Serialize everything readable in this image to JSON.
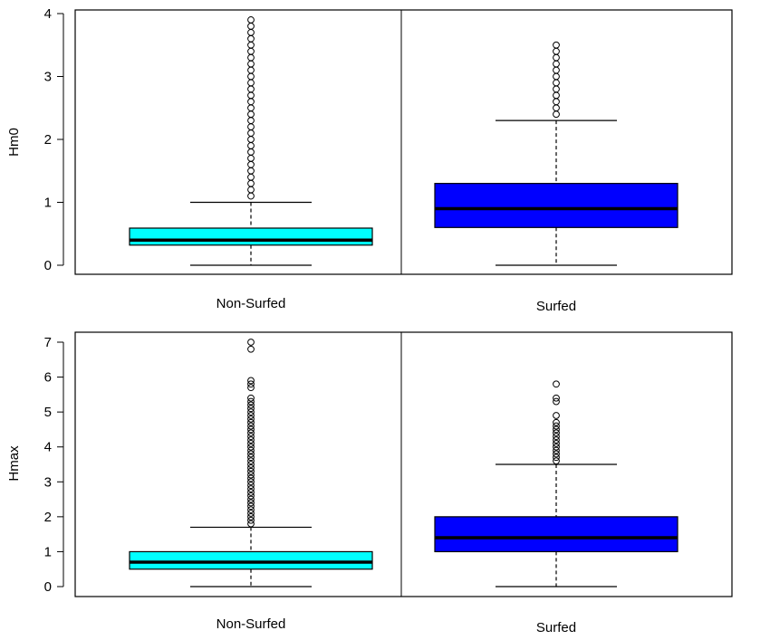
{
  "chart_data": [
    {
      "type": "box",
      "title": "",
      "ylabel": "Hm0",
      "ylim": [
        0,
        4
      ],
      "yticks": [
        "0",
        "1",
        "2",
        "3",
        "4"
      ],
      "categories": [
        "Non-Surfed",
        "Surfed"
      ],
      "boxes": [
        {
          "category": "Non-Surfed",
          "color": "#00FFFF",
          "min": 0,
          "q1": 0.32,
          "median": 0.4,
          "q3": 0.59,
          "max": 1.0,
          "outliers": [
            1.1,
            1.2,
            1.3,
            1.4,
            1.5,
            1.6,
            1.7,
            1.8,
            1.9,
            2.0,
            2.1,
            2.2,
            2.3,
            2.4,
            2.5,
            2.6,
            2.7,
            2.8,
            2.9,
            3.0,
            3.1,
            3.2,
            3.3,
            3.4,
            3.5,
            3.6,
            3.7,
            3.8,
            3.9
          ]
        },
        {
          "category": "Surfed",
          "color": "#0000FF",
          "min": 0,
          "q1": 0.6,
          "median": 0.9,
          "q3": 1.3,
          "max": 2.3,
          "outliers": [
            2.4,
            2.5,
            2.6,
            2.7,
            2.8,
            2.9,
            3.0,
            3.1,
            3.2,
            3.3,
            3.4,
            3.5
          ]
        }
      ]
    },
    {
      "type": "box",
      "title": "",
      "ylabel": "Hmax",
      "ylim": [
        0,
        7
      ],
      "yticks": [
        "0",
        "1",
        "2",
        "3",
        "4",
        "5",
        "6",
        "7"
      ],
      "categories": [
        "Non-Surfed",
        "Surfed"
      ],
      "boxes": [
        {
          "category": "Non-Surfed",
          "color": "#00FFFF",
          "min": 0,
          "q1": 0.5,
          "median": 0.7,
          "q3": 1.0,
          "max": 1.7,
          "outliers": [
            1.8,
            1.9,
            2.0,
            2.1,
            2.2,
            2.3,
            2.4,
            2.5,
            2.6,
            2.7,
            2.8,
            2.9,
            3.0,
            3.1,
            3.2,
            3.3,
            3.4,
            3.5,
            3.6,
            3.7,
            3.8,
            3.9,
            4.0,
            4.1,
            4.2,
            4.3,
            4.4,
            4.5,
            4.6,
            4.7,
            4.8,
            4.9,
            5.0,
            5.1,
            5.2,
            5.3,
            5.4,
            5.7,
            5.8,
            5.9,
            6.8,
            7.0
          ]
        },
        {
          "category": "Surfed",
          "color": "#0000FF",
          "min": 0,
          "q1": 1.0,
          "median": 1.4,
          "q3": 2.0,
          "max": 3.5,
          "outliers": [
            3.6,
            3.7,
            3.8,
            3.9,
            4.0,
            4.1,
            4.2,
            4.3,
            4.4,
            4.5,
            4.6,
            4.7,
            4.9,
            5.3,
            5.4,
            5.8
          ]
        }
      ]
    }
  ]
}
